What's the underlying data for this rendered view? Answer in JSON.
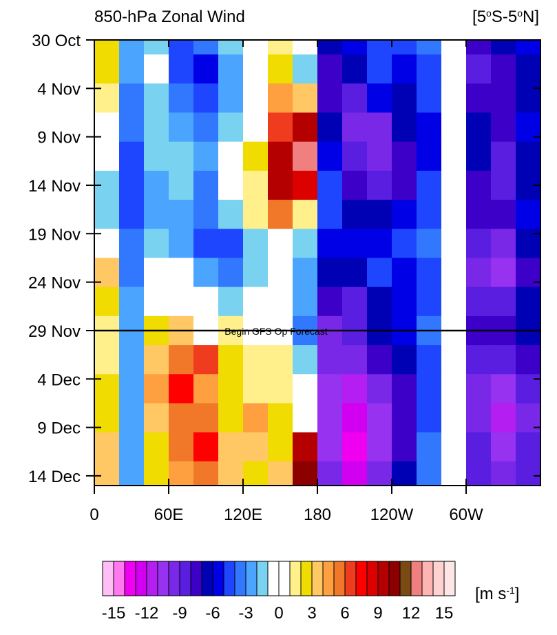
{
  "chart_data": {
    "type": "hovmoller",
    "title": "850-hPa Zonal Wind",
    "region_parts": [
      "[5",
      "o",
      "S-5",
      "o",
      "N]"
    ],
    "x": [
      10,
      30,
      50,
      70,
      90,
      110,
      130,
      150,
      170,
      190,
      210,
      230,
      250,
      270,
      290,
      310,
      330,
      350
    ],
    "y": [
      0,
      3,
      6,
      9,
      12,
      15,
      18,
      21,
      24,
      27,
      30,
      33,
      36,
      39,
      42,
      45
    ],
    "values": [
      [
        2,
        -3,
        -2,
        -5,
        -4,
        -2,
        0,
        1,
        -1,
        -7,
        -6,
        -5,
        -5,
        -4,
        0,
        -8,
        -7,
        -6
      ],
      [
        2,
        -3,
        -1,
        -5,
        -6,
        -3,
        -1,
        2,
        -2,
        -8,
        -7,
        -5,
        -6,
        -5,
        -1,
        -9,
        -8,
        -7
      ],
      [
        1,
        -4,
        -2,
        -4,
        -5,
        -3,
        -1,
        4,
        3,
        -8,
        -9,
        -6,
        -7,
        -5,
        0,
        -8,
        -8,
        -7
      ],
      [
        0,
        -4,
        -2,
        -3,
        -4,
        -2,
        0,
        6,
        9,
        -7,
        -10,
        -10,
        -7,
        -6,
        -1,
        -7,
        -8,
        -6
      ],
      [
        -1,
        -5,
        -2,
        -2,
        -3,
        -1,
        2,
        9,
        12,
        -6,
        -9,
        -10,
        -8,
        -6,
        -1,
        -7,
        -9,
        -7
      ],
      [
        -2,
        -5,
        -3,
        -2,
        -4,
        -1,
        1,
        9,
        8,
        -5,
        -8,
        -9,
        -8,
        -5,
        0,
        -8,
        -9,
        -7
      ],
      [
        -2,
        -5,
        -3,
        -3,
        -4,
        -2,
        1,
        5,
        1,
        -5,
        -7,
        -7,
        -6,
        -5,
        -1,
        -8,
        -8,
        -6
      ],
      [
        0,
        -4,
        -2,
        -3,
        -5,
        -5,
        -2,
        0,
        -2,
        -6,
        -6,
        -6,
        -5,
        -4,
        0,
        -9,
        -10,
        -7
      ],
      [
        3,
        -4,
        -1,
        -1,
        -3,
        -4,
        -2,
        -1,
        -3,
        -7,
        -7,
        -5,
        -6,
        -5,
        0,
        -10,
        -11,
        -8
      ],
      [
        2,
        -3,
        0,
        0,
        -1,
        -2,
        -1,
        -1,
        -3,
        -8,
        -9,
        -7,
        -6,
        -5,
        -1,
        -9,
        -9,
        -7
      ],
      [
        1,
        -3,
        2,
        3,
        0,
        1,
        0,
        0,
        -4,
        -10,
        -9,
        -7,
        -6,
        -4,
        0,
        -8,
        -8,
        -7
      ],
      [
        1,
        -3,
        3,
        5,
        6,
        2,
        1,
        1,
        -2,
        -10,
        -10,
        -8,
        -7,
        -5,
        0,
        -9,
        -9,
        -8
      ],
      [
        2,
        -3,
        4,
        7,
        4,
        2,
        1,
        1,
        -1,
        -11,
        -12,
        -10,
        -8,
        -5,
        -1,
        -10,
        -11,
        -9
      ],
      [
        2,
        -3,
        3,
        5,
        5,
        2,
        4,
        2,
        -1,
        -11,
        -13,
        -11,
        -8,
        -5,
        0,
        -10,
        -12,
        -10
      ],
      [
        3,
        -3,
        2,
        5,
        7,
        3,
        3,
        2,
        9,
        -11,
        -14,
        -11,
        -8,
        -4,
        0,
        -9,
        -11,
        -9
      ],
      [
        3,
        -3,
        2,
        4,
        5,
        3,
        2,
        3,
        10,
        -10,
        -13,
        -10,
        -7,
        -4,
        0,
        -9,
        -10,
        -9
      ]
    ],
    "xlim": [
      0,
      360
    ],
    "xticks": [
      0,
      {
        "value": 60,
        "label": "60E"
      },
      {
        "value": 120,
        "label": "120E"
      },
      180,
      {
        "value": 240,
        "label": "120W"
      },
      {
        "value": 300,
        "label": "60W"
      }
    ],
    "ylim": [
      0,
      46
    ],
    "yticks": [
      {
        "value": 0,
        "label": "30 Oct"
      },
      {
        "value": 5,
        "label": "4 Nov"
      },
      {
        "value": 10,
        "label": "9 Nov"
      },
      {
        "value": 15,
        "label": "14 Nov"
      },
      {
        "value": 20,
        "label": "19 Nov"
      },
      {
        "value": 25,
        "label": "24 Nov"
      },
      {
        "value": 30,
        "label": "29 Nov"
      },
      {
        "value": 35,
        "label": "4 Dec"
      },
      {
        "value": 40,
        "label": "9 Dec"
      },
      {
        "value": 45,
        "label": "14 Dec"
      }
    ],
    "annotations": [
      {
        "text": "Begin GFS Op Forecast",
        "y": 30
      }
    ],
    "colorbar": {
      "levels": [
        -16,
        -15,
        -14,
        -13,
        -12,
        -11,
        -10,
        -9,
        -8,
        -7,
        -6,
        -5,
        -4,
        -3,
        -2,
        -1,
        0,
        1,
        2,
        3,
        4,
        5,
        6,
        7,
        8,
        9,
        10,
        11,
        12,
        13,
        14,
        15,
        16
      ],
      "colors": [
        "#ffbef5",
        "#ff78f0",
        "#f000f0",
        "#d200f0",
        "#b41ef0",
        "#9632f0",
        "#7828e6",
        "#5a1ee1",
        "#3c00c8",
        "#0000b4",
        "#0000e6",
        "#1e46ff",
        "#3278ff",
        "#4ba5ff",
        "#78d2f0",
        "#ffffff",
        "#ffffff",
        "#fff08c",
        "#f0dc00",
        "#ffc864",
        "#ffa040",
        "#f07828",
        "#f03c1e",
        "#ff0000",
        "#dc0000",
        "#b40000",
        "#8c0000",
        "#7a4a14",
        "#f08080",
        "#ffb4b4",
        "#ffd2d2",
        "#ffe6e6"
      ],
      "ticks": [
        -15,
        -12,
        -9,
        -6,
        -3,
        0,
        3,
        6,
        9,
        12,
        15
      ],
      "units_parts": [
        "[m s",
        "-1",
        "]"
      ]
    }
  }
}
